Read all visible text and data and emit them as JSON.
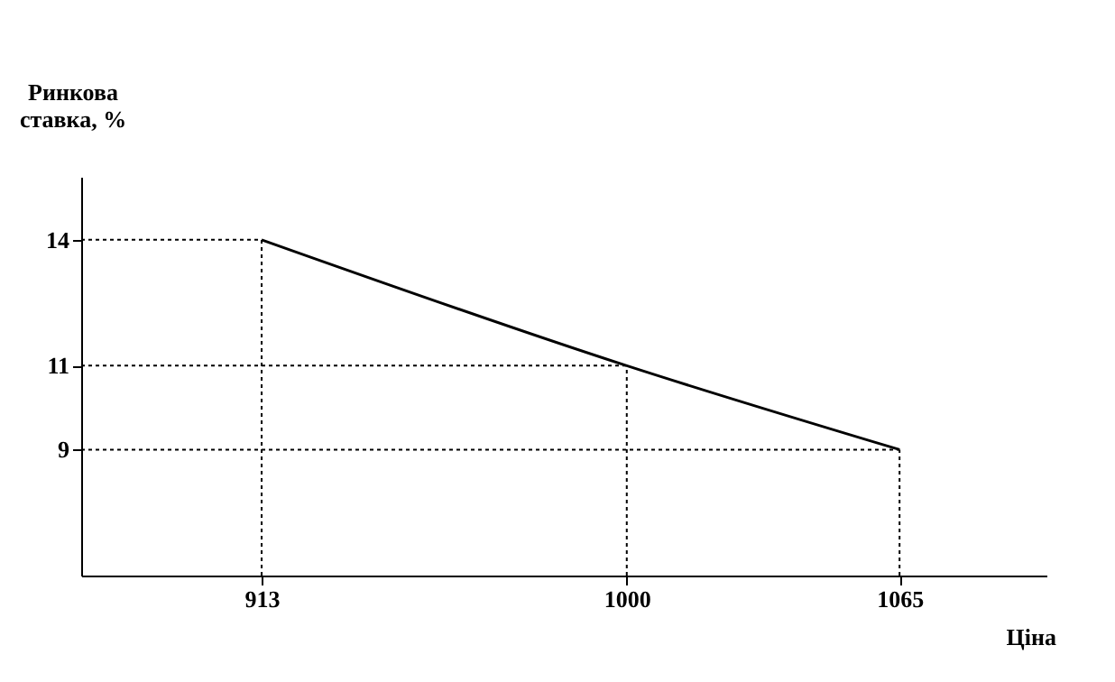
{
  "chart_data": {
    "type": "line",
    "xlabel": "Ціна",
    "ylabel": "Ринкова ставка, %",
    "xlim": [
      870,
      1100
    ],
    "ylim": [
      6,
      15.5
    ],
    "xticks": [
      913,
      1000,
      1065
    ],
    "yticks": [
      9,
      11,
      14
    ],
    "grid": false,
    "marker": "none",
    "series": [
      {
        "color": "#000000",
        "line_style": "solid",
        "x": [
          913,
          1000,
          1065
        ],
        "values": [
          14,
          11,
          9
        ]
      },
      {
        "color": "#000000",
        "line_style": "dotted",
        "x": [
          870,
          913
        ],
        "values": [
          14,
          14
        ]
      },
      {
        "color": "#000000",
        "line_style": "dotted",
        "x": [
          870,
          1000
        ],
        "values": [
          11,
          11
        ]
      },
      {
        "color": "#000000",
        "line_style": "dotted",
        "x": [
          870,
          1065
        ],
        "values": [
          9,
          9
        ]
      },
      {
        "color": "#000000",
        "line_style": "dotted",
        "x": [
          913,
          913
        ],
        "values": [
          6,
          14
        ]
      },
      {
        "color": "#000000",
        "line_style": "dotted",
        "x": [
          1000,
          1000
        ],
        "values": [
          6,
          11
        ]
      },
      {
        "color": "#000000",
        "line_style": "dotted",
        "x": [
          1065,
          1065
        ],
        "values": [
          6,
          9
        ]
      }
    ]
  }
}
